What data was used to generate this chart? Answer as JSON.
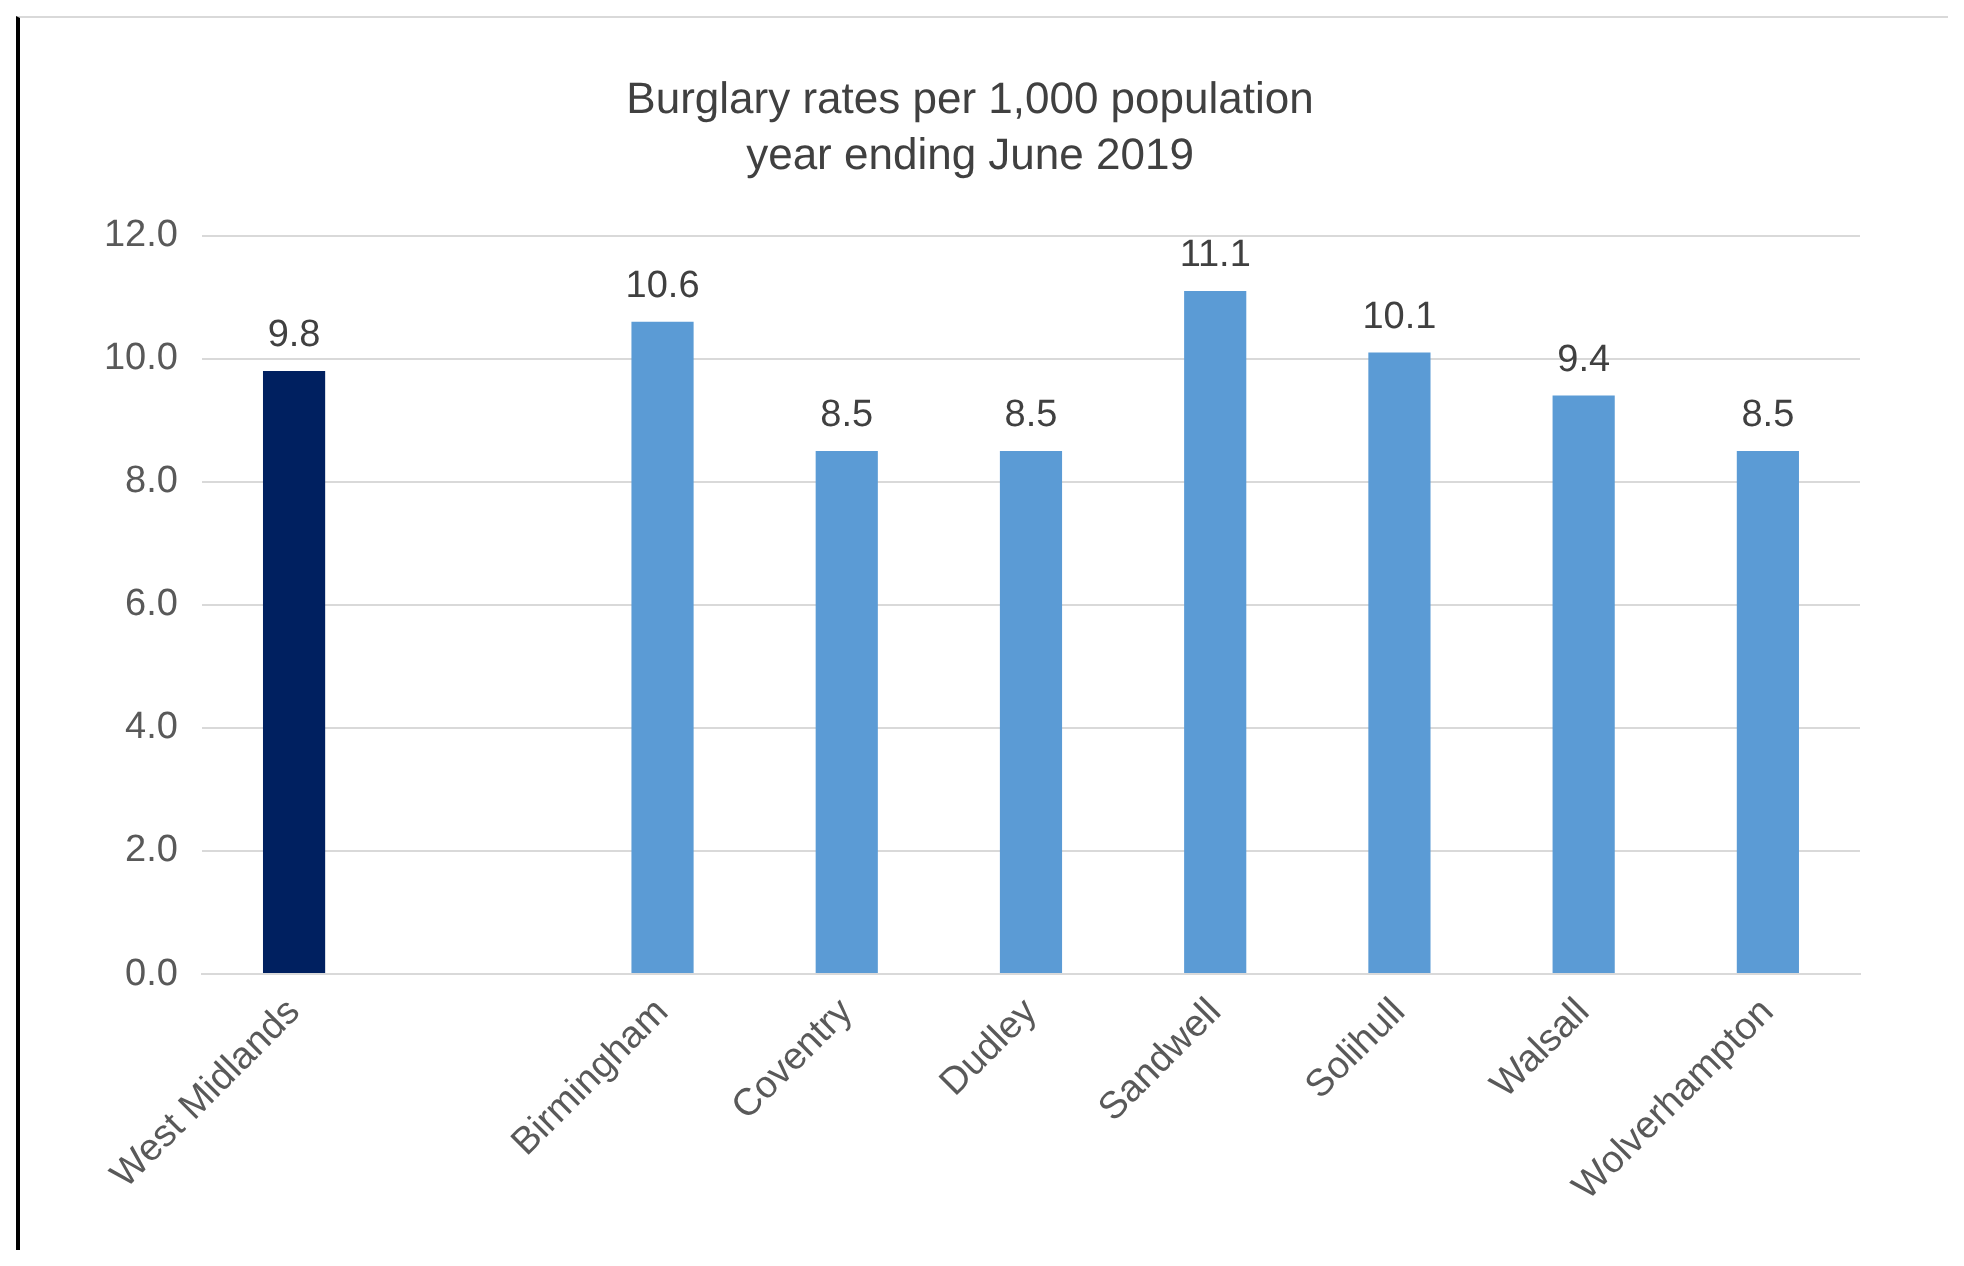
{
  "chart_data": {
    "type": "bar",
    "title": "Burglary rates per 1,000 population",
    "subtitle": "year ending June 2019",
    "categories": [
      "West Midlands",
      null,
      "Birmingham",
      "Coventry",
      "Dudley",
      "Sandwell",
      "Solihull",
      "Walsall",
      "Wolverhampton"
    ],
    "values": [
      9.8,
      null,
      10.6,
      8.5,
      8.5,
      11.1,
      10.1,
      9.4,
      8.5
    ],
    "colors": [
      "#002060",
      null,
      "#5b9bd5",
      "#5b9bd5",
      "#5b9bd5",
      "#5b9bd5",
      "#5b9bd5",
      "#5b9bd5",
      "#5b9bd5"
    ],
    "ylim": [
      0,
      12
    ],
    "yticks": [
      {
        "value": 0,
        "label": "0.0"
      },
      {
        "value": 2,
        "label": "2.0"
      },
      {
        "value": 4,
        "label": "4.0"
      },
      {
        "value": 6,
        "label": "6.0"
      },
      {
        "value": 8,
        "label": "8.0"
      },
      {
        "value": 10,
        "label": "10.0"
      },
      {
        "value": 12,
        "label": "12.0"
      }
    ],
    "grid": "y",
    "data_labels": true,
    "legend": false
  }
}
